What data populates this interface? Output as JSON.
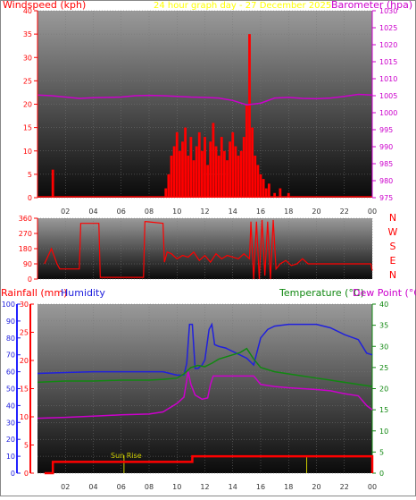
{
  "colors": {
    "wind": "#ff0000",
    "gust_mark": "#0000ff",
    "wind_green": "#00aa00",
    "baro": "#cc00cc",
    "title": "#ffff00",
    "humidity": "#2020dd",
    "temperature": "#118811",
    "dewpoint": "#cc00cc",
    "rain": "#ff0000",
    "direction": "#ff0000",
    "sun": "#cccc00",
    "frame": "#6a6a6a"
  },
  "chart_data": [
    {
      "type": "bar",
      "title": "24 hour graph day - 27 December 2025",
      "ylabel_left": "Windspeed (kph)",
      "ylabel_right": "Barometer (hpa)",
      "ylim": [
        0,
        40
      ],
      "y2lim": [
        975,
        1030
      ],
      "x_ticks": [
        "02",
        "04",
        "06",
        "08",
        "10",
        "12",
        "14",
        "16",
        "18",
        "20",
        "22",
        "00"
      ],
      "y_ticks": [
        "0",
        "5",
        "10",
        "15",
        "20",
        "25",
        "30",
        "35",
        "40"
      ],
      "y2_ticks": [
        "975",
        "980",
        "985",
        "990",
        "995",
        "1000",
        "1005",
        "1010",
        "1015",
        "1020",
        "1025",
        "1030"
      ],
      "series": [
        {
          "name": "Windspeed (kph)",
          "x": [
            1.0,
            1.1,
            1.3,
            9.2,
            9.4,
            9.6,
            9.8,
            10.0,
            10.2,
            10.4,
            10.6,
            10.8,
            11.0,
            11.2,
            11.4,
            11.6,
            11.8,
            12.0,
            12.2,
            12.4,
            12.6,
            12.8,
            13.0,
            13.2,
            13.4,
            13.6,
            13.8,
            14.0,
            14.2,
            14.4,
            14.6,
            14.8,
            15.0,
            15.2,
            15.4,
            15.6,
            15.8,
            16.0,
            16.2,
            16.4,
            16.6,
            17.0,
            17.4,
            18.0
          ],
          "values": [
            0,
            6,
            0,
            2,
            5,
            9,
            11,
            14,
            10,
            12,
            15,
            9,
            13,
            8,
            11,
            14,
            10,
            13,
            7,
            12,
            16,
            11,
            9,
            13,
            10,
            8,
            12,
            14,
            11,
            9,
            10,
            13,
            20,
            35,
            15,
            9,
            7,
            5,
            4,
            2,
            3,
            1,
            2,
            1
          ]
        },
        {
          "name": "Barometer (hpa)",
          "x": [
            0,
            1,
            2,
            3,
            4,
            5,
            6,
            7,
            8,
            9,
            10,
            11,
            12,
            13,
            14,
            15,
            16,
            17,
            18,
            19,
            20,
            21,
            22,
            23,
            24
          ],
          "values": [
            1005.2,
            1005.0,
            1004.6,
            1004.2,
            1004.4,
            1004.5,
            1004.6,
            1005.0,
            1005.1,
            1005.0,
            1004.8,
            1004.6,
            1004.5,
            1004.3,
            1003.6,
            1002.3,
            1002.8,
            1004.3,
            1004.5,
            1004.2,
            1004.1,
            1004.3,
            1004.8,
            1005.4,
            1005.2
          ]
        }
      ]
    },
    {
      "type": "line",
      "title": "",
      "ylabel_right_letters": [
        "N",
        "W",
        "S",
        "E",
        "N"
      ],
      "ylim": [
        0,
        360
      ],
      "y_ticks": [
        "0",
        "90",
        "180",
        "270",
        "360"
      ],
      "series": [
        {
          "name": "",
          "x": [
            0.5,
            1.0,
            1.4,
            1.6,
            3.0,
            3.1,
            3.2,
            4.4,
            4.5,
            4.6,
            7.6,
            7.7,
            7.8,
            9.0,
            9.1,
            9.3,
            9.6,
            10.0,
            10.4,
            10.8,
            11.2,
            11.6,
            12.0,
            12.4,
            12.8,
            13.2,
            13.6,
            14.0,
            14.4,
            14.8,
            15.2,
            15.3,
            15.5,
            15.7,
            15.9,
            16.1,
            16.3,
            16.5,
            16.7,
            16.9,
            17.1,
            17.4,
            17.8,
            18.2,
            18.6,
            19.0,
            19.4,
            20.0,
            21.0,
            22.0,
            23.0,
            23.9,
            24.0
          ],
          "values": [
            90,
            180,
            90,
            60,
            60,
            330,
            330,
            330,
            10,
            10,
            10,
            340,
            340,
            330,
            100,
            160,
            150,
            120,
            140,
            130,
            160,
            110,
            140,
            100,
            150,
            120,
            140,
            130,
            120,
            150,
            120,
            340,
            0,
            340,
            0,
            350,
            20,
            340,
            0,
            350,
            60,
            90,
            110,
            80,
            90,
            120,
            90,
            90,
            90,
            90,
            90,
            90,
            50
          ]
        }
      ]
    },
    {
      "type": "line",
      "title": "",
      "ylabel_left1": "Rainfall (mm)",
      "ylabel_left2": "Humidity",
      "ylabel_right1": "Temperature (°C)",
      "ylabel_right2": "Dew Point (°C)",
      "humidity_ticks": [
        "0",
        "10",
        "20",
        "30",
        "40",
        "50",
        "60",
        "70",
        "80",
        "90",
        "100"
      ],
      "rain_ticks": [
        "0",
        "5",
        "10",
        "15",
        "20",
        "25",
        "30"
      ],
      "temp_ticks": [
        "0",
        "5",
        "10",
        "15",
        "20",
        "25",
        "30",
        "35",
        "40"
      ],
      "annotation": "Sun Rise",
      "series": [
        {
          "name": "Humidity",
          "x": [
            0,
            2,
            4,
            6,
            8,
            9,
            9.5,
            10,
            10.5,
            10.7,
            10.9,
            11.1,
            11.3,
            11.5,
            11.8,
            12.0,
            12.3,
            12.5,
            12.7,
            13.0,
            13.5,
            14,
            14.5,
            15,
            15.5,
            16,
            16.5,
            17,
            18,
            19,
            20,
            21,
            22,
            23,
            23.6,
            24
          ],
          "values": [
            59,
            59.5,
            60,
            60,
            60,
            60,
            59,
            58,
            58,
            65,
            88,
            88,
            62,
            62,
            64,
            67,
            85,
            88,
            76,
            75,
            74,
            72,
            70,
            68,
            64,
            80,
            85,
            87,
            88,
            88,
            88,
            86,
            82,
            79,
            71,
            70
          ]
        },
        {
          "name": "Temperature (°C)",
          "x": [
            0,
            2,
            4,
            6,
            8,
            9,
            10,
            10.5,
            11,
            11.5,
            12,
            12.5,
            13,
            13.5,
            14,
            14.5,
            15,
            15.5,
            16,
            17,
            18,
            19,
            20,
            21,
            22,
            23,
            24
          ],
          "values": [
            21.5,
            21.8,
            21.8,
            22,
            22,
            22.2,
            22.5,
            23.5,
            25,
            25.5,
            25.2,
            26,
            27,
            27.5,
            28,
            28.5,
            29.5,
            27,
            25,
            24,
            23.5,
            23,
            22.5,
            22,
            21.5,
            21,
            20.5
          ]
        },
        {
          "name": "Dew Point (°C)",
          "x": [
            0,
            2,
            4,
            6,
            8,
            9,
            10,
            10.5,
            10.8,
            11.0,
            11.3,
            11.8,
            12.2,
            12.4,
            12.6,
            13,
            14,
            15,
            15.5,
            16,
            17,
            18,
            19,
            20,
            21,
            22,
            23,
            23.6,
            24
          ],
          "values": [
            13,
            13.2,
            13.5,
            13.8,
            14,
            14.5,
            16.5,
            18,
            24,
            21,
            18.5,
            17.5,
            17.8,
            21,
            23,
            23,
            23,
            23,
            23,
            21,
            20.5,
            20.2,
            20,
            19.8,
            19.5,
            18.8,
            18.3,
            16,
            15
          ]
        },
        {
          "name": "Rainfall (mm)",
          "x": [
            0.5,
            1.0,
            1.1,
            11.0,
            11.1,
            14.5,
            23.5,
            24.0
          ],
          "values": [
            0,
            0,
            2,
            2,
            3,
            3,
            3,
            0
          ]
        }
      ]
    }
  ]
}
